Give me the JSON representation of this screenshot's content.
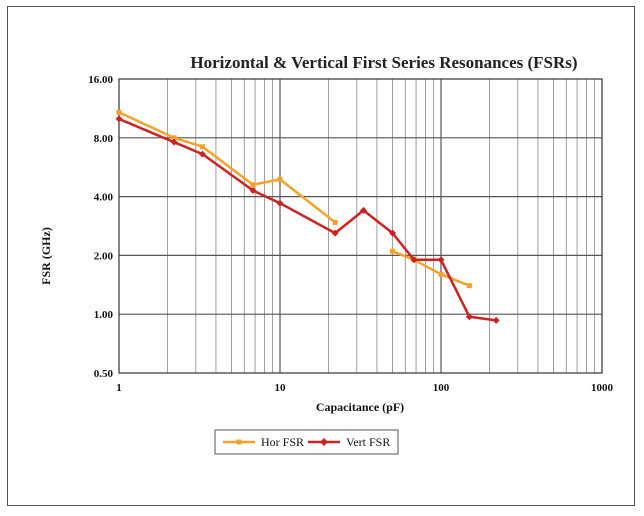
{
  "chart_data": {
    "type": "line",
    "title": "Horizontal & Vertical First Series Resonances (FSRs)",
    "xlabel": "Capacitance (pF)",
    "ylabel": "FSR (GHz)",
    "x_scale": "log",
    "y_scale": "log",
    "xlim": [
      1,
      1000
    ],
    "ylim": [
      0.5,
      16
    ],
    "x_ticks": [
      "1",
      "10",
      "100",
      "1000"
    ],
    "y_ticks": [
      "0.50",
      "1.00",
      "2.00",
      "4.00",
      "8.00",
      "16.00"
    ],
    "grid": true,
    "legend_position": "bottom-center",
    "series": [
      {
        "name": "Hor FSR",
        "color": "#f5a12a",
        "marker": "square",
        "points": [
          [
            1,
            10.8
          ],
          [
            2.2,
            8.0
          ],
          [
            3.3,
            7.2
          ],
          [
            6.8,
            4.6
          ],
          [
            10,
            4.9
          ],
          [
            22,
            2.95
          ]
        ],
        "points2": [
          [
            50,
            2.1
          ],
          [
            68,
            1.9
          ],
          [
            100,
            1.6
          ],
          [
            150,
            1.4
          ]
        ]
      },
      {
        "name": "Vert FSR",
        "color": "#cc2222",
        "marker": "diamond",
        "points": [
          [
            1,
            10.0
          ],
          [
            2.2,
            7.6
          ],
          [
            3.3,
            6.6
          ],
          [
            6.8,
            4.3
          ],
          [
            10,
            3.7
          ],
          [
            22,
            2.6
          ],
          [
            33,
            3.4
          ],
          [
            50,
            2.6
          ],
          [
            68,
            1.9
          ],
          [
            100,
            1.9
          ],
          [
            150,
            0.97
          ],
          [
            220,
            0.93
          ]
        ]
      }
    ]
  }
}
